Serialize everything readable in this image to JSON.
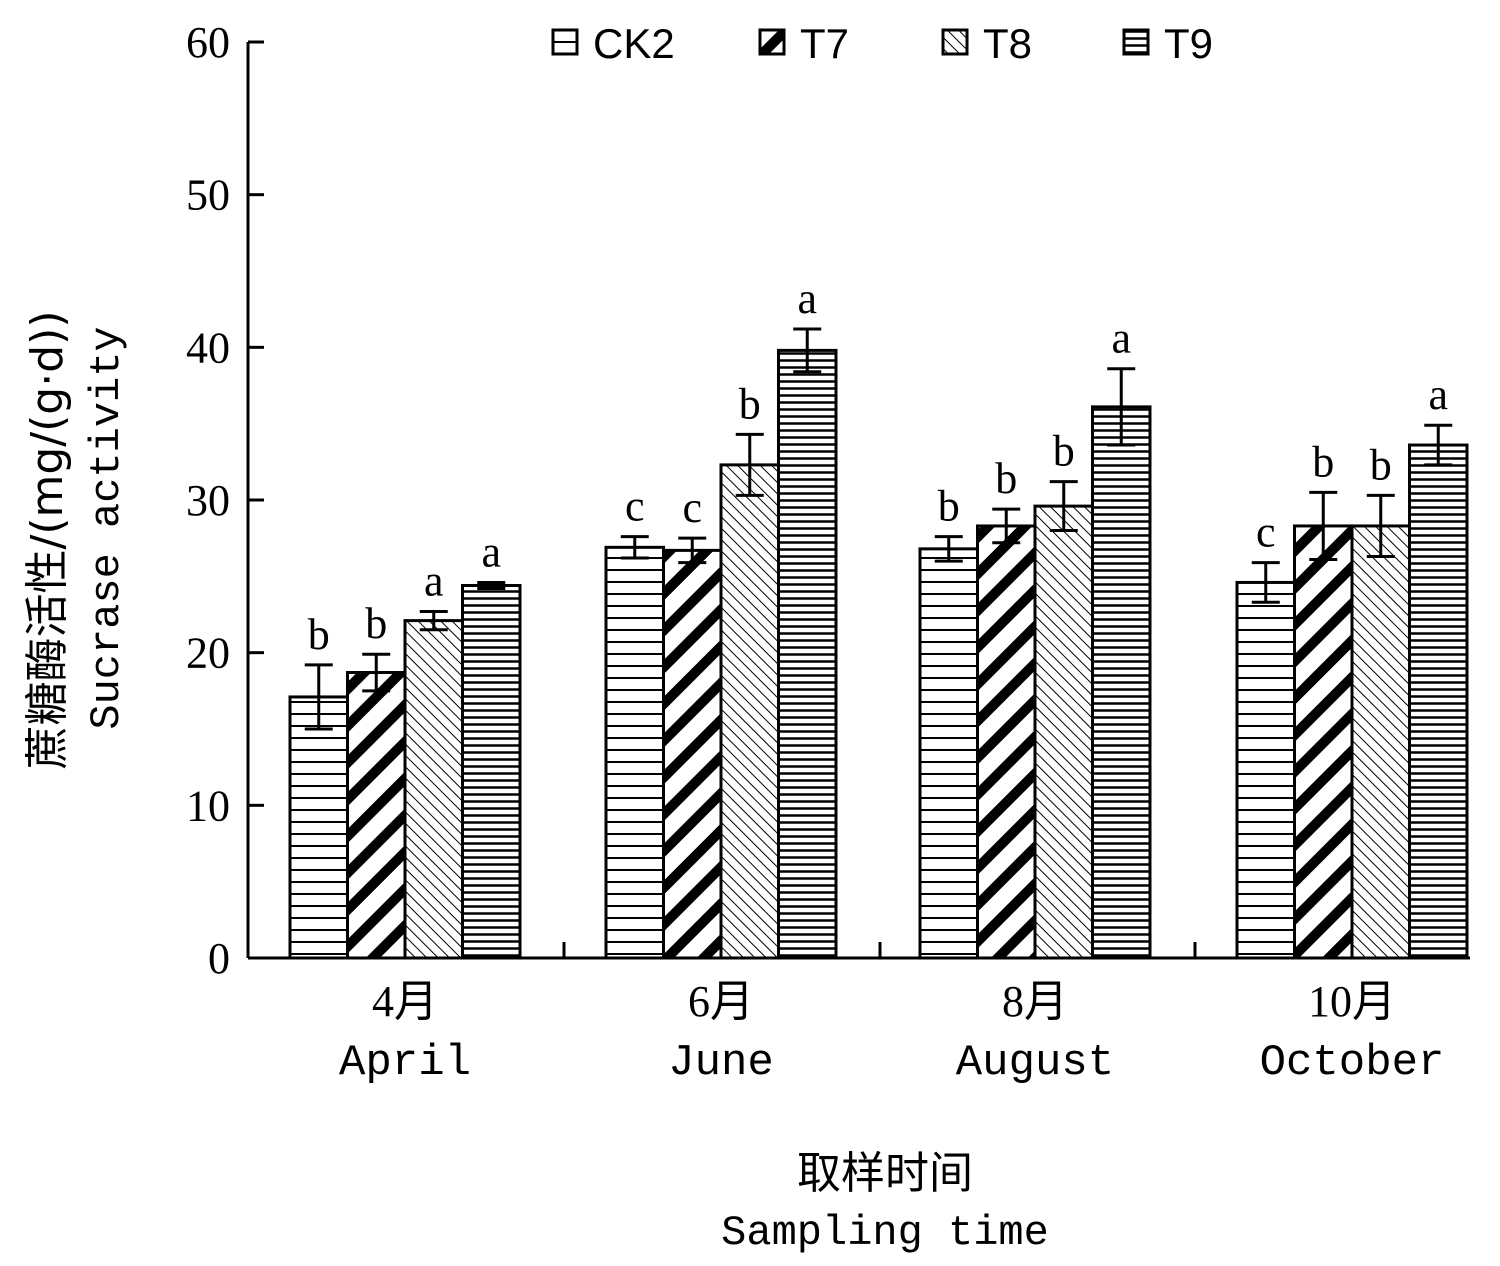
{
  "chart_data": {
    "type": "bar",
    "xlabel_zh": "取样时间",
    "xlabel_en": "Sampling time",
    "ylabel_zh": "蔗糖酶活性/(mg/(g·d))",
    "ylabel_en": "Sucrase activity",
    "ylim": [
      0,
      60
    ],
    "yticks": [
      0,
      10,
      20,
      30,
      40,
      50,
      60
    ],
    "categories": [
      {
        "zh": "4月",
        "en": "April"
      },
      {
        "zh": "6月",
        "en": "June"
      },
      {
        "zh": "8月",
        "en": "August"
      },
      {
        "zh": "10月",
        "en": "October"
      }
    ],
    "legend_position": "top",
    "series": [
      {
        "name": "CK2",
        "pattern": "horizontal-lines",
        "values": [
          17.1,
          26.9,
          26.8,
          24.6
        ],
        "errors": [
          2.1,
          0.7,
          0.8,
          1.3
        ],
        "significance": [
          "b",
          "c",
          "b",
          "c"
        ]
      },
      {
        "name": "T7",
        "pattern": "wide-diagonal",
        "values": [
          18.7,
          26.7,
          28.3,
          28.3
        ],
        "errors": [
          1.2,
          0.8,
          1.1,
          2.2
        ],
        "significance": [
          "b",
          "c",
          "b",
          "b"
        ]
      },
      {
        "name": "T8",
        "pattern": "fine-diagonal",
        "values": [
          22.1,
          32.3,
          29.6,
          28.3
        ],
        "errors": [
          0.6,
          2.0,
          1.6,
          2.0
        ],
        "significance": [
          "a",
          "b",
          "b",
          "b"
        ]
      },
      {
        "name": "T9",
        "pattern": "dense-horizontal",
        "values": [
          24.4,
          39.8,
          36.1,
          33.6
        ],
        "errors": [
          0.2,
          1.4,
          2.5,
          1.3
        ],
        "significance": [
          "a",
          "a",
          "a",
          "a"
        ]
      }
    ]
  }
}
